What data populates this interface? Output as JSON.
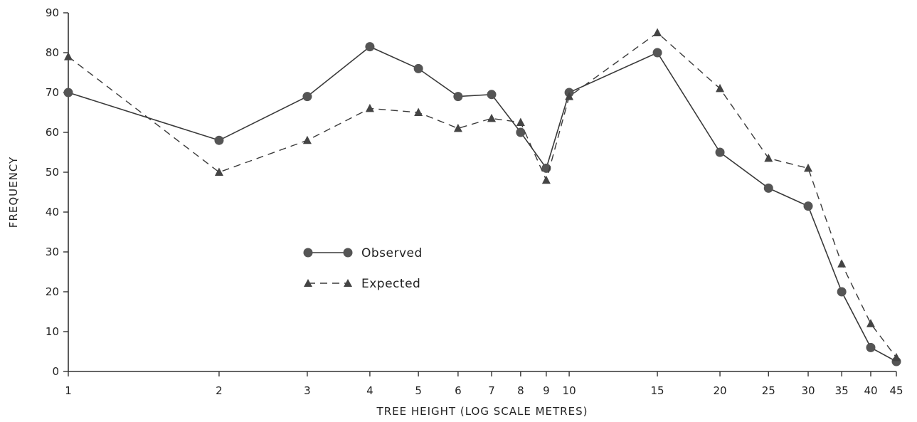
{
  "chart_data": {
    "type": "line",
    "xlabel": "TREE HEIGHT (LOG SCALE METRES)",
    "ylabel": "FREQUENCY",
    "x_scale": "log",
    "xlim": [
      1,
      45
    ],
    "ylim": [
      0,
      90
    ],
    "x_ticks": [
      1,
      2,
      3,
      4,
      5,
      6,
      7,
      8,
      9,
      10,
      15,
      20,
      25,
      30,
      35,
      40,
      45
    ],
    "y_ticks": [
      0,
      10,
      20,
      30,
      40,
      50,
      60,
      70,
      80,
      90
    ],
    "grid": false,
    "legend_position": "center-left",
    "series": [
      {
        "name": "Observed",
        "marker": "circle",
        "line_style": "solid",
        "color": "#3a3a3a",
        "x": [
          1,
          2,
          3,
          4,
          5,
          6,
          7,
          8,
          9,
          10,
          15,
          20,
          25,
          30,
          35,
          40,
          45
        ],
        "y": [
          70,
          58,
          69,
          81.5,
          76,
          69,
          69.5,
          60,
          51,
          70,
          80,
          55,
          46,
          41.5,
          20,
          6,
          2.5
        ]
      },
      {
        "name": "Expected",
        "marker": "triangle",
        "line_style": "dashed",
        "color": "#3a3a3a",
        "x": [
          1,
          2,
          3,
          4,
          5,
          6,
          7,
          8,
          9,
          10,
          15,
          20,
          25,
          30,
          35,
          40,
          45
        ],
        "y": [
          79,
          50,
          58,
          66,
          65,
          61,
          63.5,
          62.5,
          48,
          69,
          85,
          71,
          53.5,
          51,
          27,
          12,
          3.5
        ]
      }
    ]
  }
}
